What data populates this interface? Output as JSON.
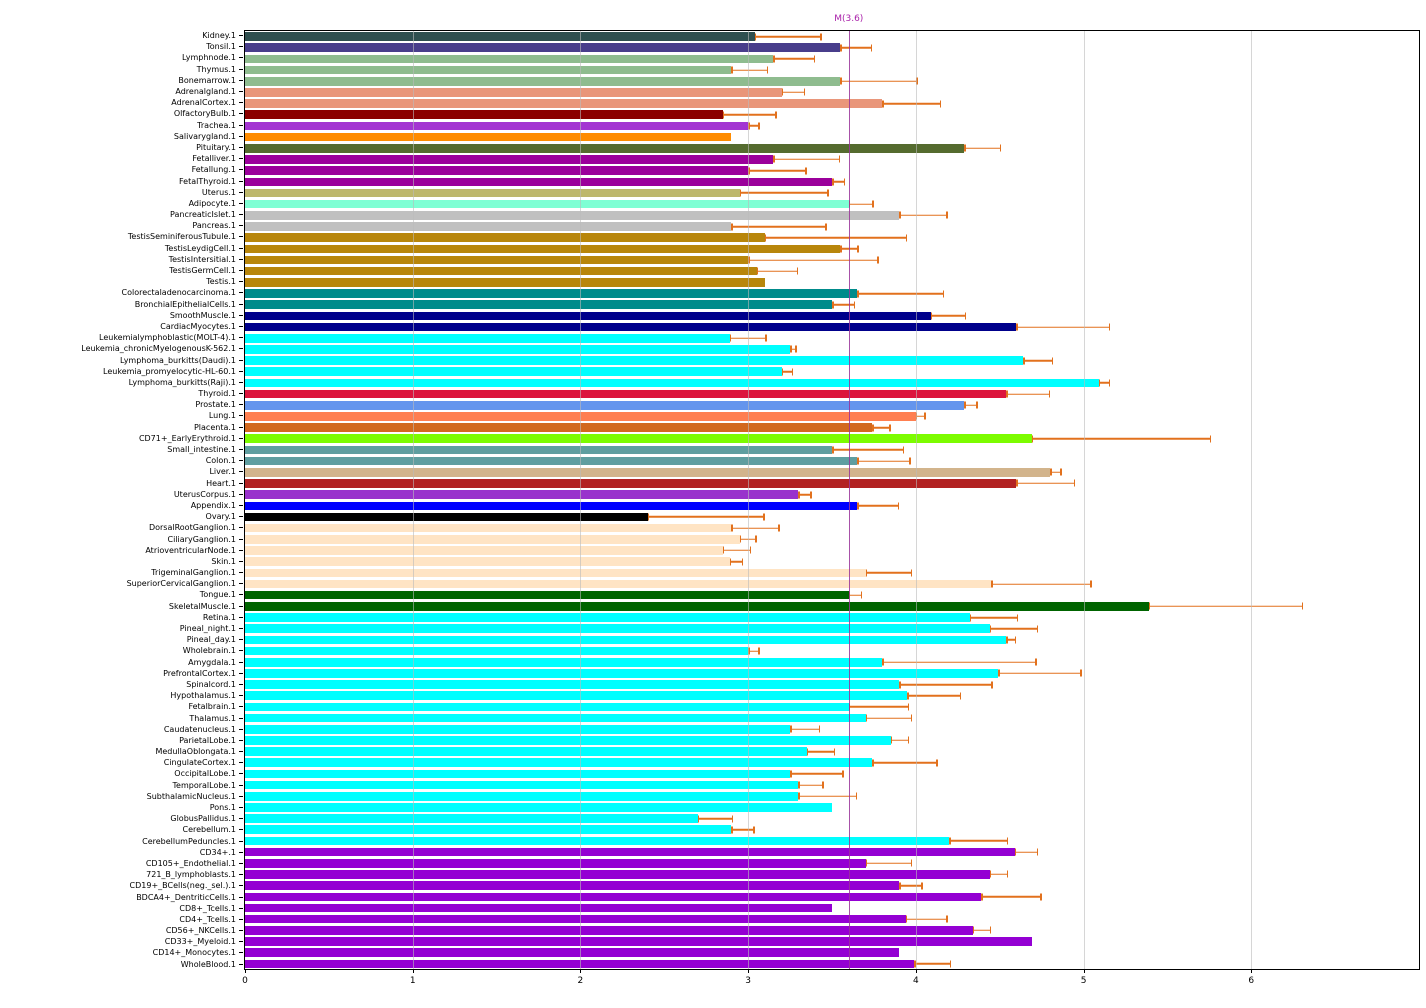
{
  "figure": {
    "background": "#FFFFFF",
    "grid_color": "#BBBBBB",
    "error_color": "#E2711D",
    "marker_color": "#993399",
    "marker_label_color": "#AA22AA"
  },
  "chart_data": {
    "type": "bar",
    "orientation": "horizontal",
    "title": "",
    "xlabel": "",
    "ylabel": "",
    "xlim": [
      0,
      7
    ],
    "x_ticks": [
      0,
      1,
      2,
      3,
      4,
      5,
      6
    ],
    "grid": true,
    "legend": false,
    "marker_line": {
      "label": "M(3.6)",
      "value": 3.6
    },
    "categories": [
      "Kidney.1",
      "Tonsil.1",
      "Lymphnode.1",
      "Thymus.1",
      "Bonemarrow.1",
      "Adrenalgland.1",
      "AdrenalCortex.1",
      "OlfactoryBulb.1",
      "Trachea.1",
      "Salivarygland.1",
      "Pituitary.1",
      "Fetalliver.1",
      "Fetallung.1",
      "FetalThyroid.1",
      "Uterus.1",
      "Adipocyte.1",
      "PancreaticIslet.1",
      "Pancreas.1",
      "TestisSeminiferousTubule.1",
      "TestisLeydigCell.1",
      "TestisIntersitial.1",
      "TestisGermCell.1",
      "Testis.1",
      "Colorectaladenocarcinoma.1",
      "BronchialEpithelialCells.1",
      "SmoothMuscle.1",
      "CardiacMyocytes.1",
      "Leukemialymphoblastic(MOLT-4).1",
      "Leukemia_chronicMyelogenousK-562.1",
      "Lymphoma_burkitts(Daudi).1",
      "Leukemia_promyelocytic-HL-60.1",
      "Lymphoma_burkitts(Raji).1",
      "Thyroid.1",
      "Prostate.1",
      "Lung.1",
      "Placenta.1",
      "CD71+_EarlyErythroid.1",
      "Small_intestine.1",
      "Colon.1",
      "Liver.1",
      "Heart.1",
      "UterusCorpus.1",
      "Appendix.1",
      "Ovary.1",
      "DorsalRootGanglion.1",
      "CiliaryGanglion.1",
      "AtrioventricularNode.1",
      "Skin.1",
      "TrigeminalGanglion.1",
      "SuperiorCervicalGanglion.1",
      "Tongue.1",
      "SkeletalMuscle.1",
      "Retina.1",
      "Pineal_night.1",
      "Pineal_day.1",
      "Wholebrain.1",
      "Amygdala.1",
      "PrefrontalCortex.1",
      "Spinalcord.1",
      "Hypothalamus.1",
      "Fetalbrain.1",
      "Thalamus.1",
      "Caudatenucleus.1",
      "ParietalLobe.1",
      "MedullaOblongata.1",
      "CingulateCortex.1",
      "OccipitalLobe.1",
      "TemporalLobe.1",
      "SubthalamicNucleus.1",
      "Pons.1",
      "GlobusPallidus.1",
      "Cerebellum.1",
      "CerebellumPeduncles.1",
      "CD34+.1",
      "CD105+_Endothelial.1",
      "721_B_lymphoblasts.1",
      "CD19+_BCells(neg._sel.).1",
      "BDCA4+_DentriticCells.1",
      "CD8+_Tcells.1",
      "CD4+_Tcells.1",
      "CD56+_NKCells.1",
      "CD33+_Myeloid.1",
      "CD14+_Monocytes.1",
      "WholeBlood.1"
    ],
    "values": [
      3.04,
      3.55,
      3.15,
      2.9,
      3.55,
      3.2,
      3.8,
      2.85,
      3.0,
      2.9,
      4.29,
      3.15,
      3.0,
      3.5,
      2.95,
      3.6,
      3.9,
      2.9,
      3.1,
      3.55,
      3.0,
      3.05,
      3.1,
      3.65,
      3.5,
      4.09,
      4.6,
      2.89,
      3.25,
      4.64,
      3.2,
      5.09,
      4.54,
      4.29,
      4.0,
      3.74,
      4.69,
      3.5,
      3.65,
      4.8,
      4.6,
      3.3,
      3.65,
      2.4,
      2.9,
      2.95,
      2.85,
      2.89,
      3.7,
      4.45,
      3.6,
      5.39,
      4.32,
      4.44,
      4.54,
      3.0,
      3.8,
      4.49,
      3.9,
      3.95,
      3.6,
      3.7,
      3.25,
      3.85,
      3.35,
      3.74,
      3.25,
      3.3,
      3.3,
      3.5,
      2.7,
      2.9,
      4.2,
      4.59,
      3.7,
      4.44,
      3.9,
      4.39,
      3.5,
      3.94,
      4.34,
      4.69,
      3.9,
      3.99
    ],
    "errors": [
      0.4,
      0.19,
      0.25,
      0.22,
      0.46,
      0.14,
      0.35,
      0.32,
      0.07,
      0.0,
      0.22,
      0.4,
      0.35,
      0.08,
      0.53,
      0.15,
      0.29,
      0.57,
      0.85,
      0.11,
      0.78,
      0.25,
      0.0,
      0.52,
      0.14,
      0.21,
      0.56,
      0.22,
      0.04,
      0.18,
      0.07,
      0.07,
      0.26,
      0.08,
      0.06,
      0.11,
      1.07,
      0.43,
      0.32,
      0.07,
      0.35,
      0.08,
      0.25,
      0.7,
      0.29,
      0.1,
      0.17,
      0.08,
      0.28,
      0.6,
      0.08,
      0.92,
      0.29,
      0.29,
      0.06,
      0.07,
      0.92,
      0.5,
      0.56,
      0.32,
      0.36,
      0.28,
      0.18,
      0.11,
      0.17,
      0.39,
      0.32,
      0.15,
      0.35,
      0.0,
      0.21,
      0.14,
      0.35,
      0.14,
      0.28,
      0.11,
      0.14,
      0.36,
      0.0,
      0.25,
      0.11,
      0.0,
      0.0,
      0.22
    ],
    "colors": [
      "#2F4F4F",
      "#483D8B",
      "#8FBC8F",
      "#8FBC8F",
      "#8FBC8F",
      "#E9967A",
      "#E9967A",
      "#8B0000",
      "#A335D2",
      "#FF8C00",
      "#556B2F",
      "#9B009B",
      "#9B009B",
      "#9B009B",
      "#BDB76B",
      "#7FFFD4",
      "#C0C0C0",
      "#C0C0C0",
      "#B8860B",
      "#B8860B",
      "#B8860B",
      "#B8860B",
      "#B8860B",
      "#008B8B",
      "#008B8B",
      "#00008B",
      "#00008B",
      "#00FFFF",
      "#00FFFF",
      "#00FFFF",
      "#00FFFF",
      "#00FFFF",
      "#DC143C",
      "#6495ED",
      "#FF7F50",
      "#D2691E",
      "#7CFC00",
      "#5F9EA0",
      "#5F9EA0",
      "#D2B48C",
      "#B22222",
      "#9932CC",
      "#0000FF",
      "#000000",
      "#FFE4C4",
      "#FFE4C4",
      "#FFE4C4",
      "#FFE4C4",
      "#FFE4C4",
      "#FFE4C4",
      "#006400",
      "#006400",
      "#00FFFF",
      "#00FFFF",
      "#00FFFF",
      "#00FFFF",
      "#00FFFF",
      "#00FFFF",
      "#00FFFF",
      "#00FFFF",
      "#00FFFF",
      "#00FFFF",
      "#00FFFF",
      "#00FFFF",
      "#00FFFF",
      "#00FFFF",
      "#00FFFF",
      "#00FFFF",
      "#00FFFF",
      "#00FFFF",
      "#00FFFF",
      "#00FFFF",
      "#00FFFF",
      "#9400D3",
      "#9400D3",
      "#9400D3",
      "#9400D3",
      "#9400D3",
      "#9400D3",
      "#9400D3",
      "#9400D3",
      "#9400D3",
      "#9400D3",
      "#9400D3"
    ]
  }
}
